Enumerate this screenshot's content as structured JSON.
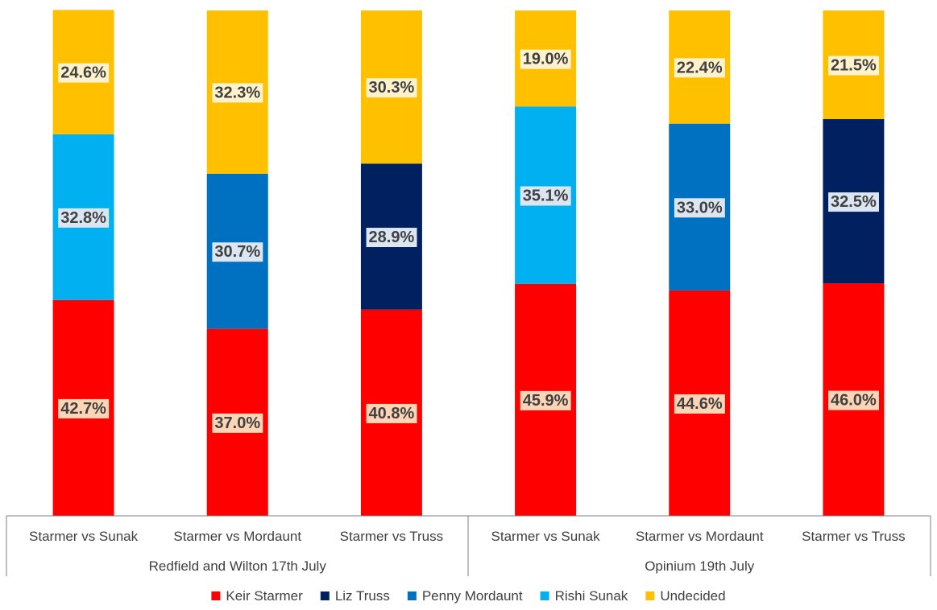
{
  "chart_data": {
    "type": "bar",
    "stacked": true,
    "percent": true,
    "ylim": [
      0,
      100
    ],
    "categories": [
      "Starmer vs Sunak",
      "Starmer vs Mordaunt",
      "Starmer vs Truss",
      "Starmer vs Sunak",
      "Starmer vs Mordaunt",
      "Starmer vs Truss"
    ],
    "groups": [
      {
        "label": "Redfield and Wilton 17th July",
        "start": 0,
        "count": 3
      },
      {
        "label": "Opinium 19th July",
        "start": 3,
        "count": 3
      }
    ],
    "series": [
      {
        "name": "Keir Starmer",
        "color": "#ff0000",
        "label_bg": "#fbd5b5",
        "values": [
          42.7,
          37.0,
          40.8,
          45.9,
          44.6,
          46.0
        ]
      },
      {
        "name": "Liz Truss",
        "color": "#002060",
        "label_bg": "#dce6f2",
        "values": [
          0,
          0,
          28.9,
          0,
          0,
          32.5
        ]
      },
      {
        "name": "Penny Mordaunt",
        "color": "#0070c0",
        "label_bg": "#dce6f2",
        "values": [
          0,
          30.7,
          0,
          0,
          33.0,
          0
        ]
      },
      {
        "name": "Rishi Sunak",
        "color": "#00b0f0",
        "label_bg": "#dce6f2",
        "values": [
          32.8,
          0,
          0,
          35.1,
          0,
          0
        ]
      },
      {
        "name": "Undecided",
        "color": "#ffc000",
        "label_bg": "#fff2cc",
        "values": [
          24.6,
          32.3,
          30.3,
          19.0,
          22.4,
          21.5
        ]
      }
    ],
    "data_labels": [
      [
        "42.7%",
        "37.0%",
        "40.8%",
        "45.9%",
        "44.6%",
        "46.0%"
      ],
      [
        "",
        "",
        "28.9%",
        "",
        "",
        "32.5%"
      ],
      [
        "",
        "30.7%",
        "",
        "",
        "33.0%",
        ""
      ],
      [
        "32.8%",
        "",
        "",
        "35.1%",
        "",
        ""
      ],
      [
        "24.6%",
        "32.3%",
        "30.3%",
        "19.0%",
        "22.4%",
        "21.5%"
      ]
    ],
    "legend": {
      "position": "bottom"
    }
  }
}
